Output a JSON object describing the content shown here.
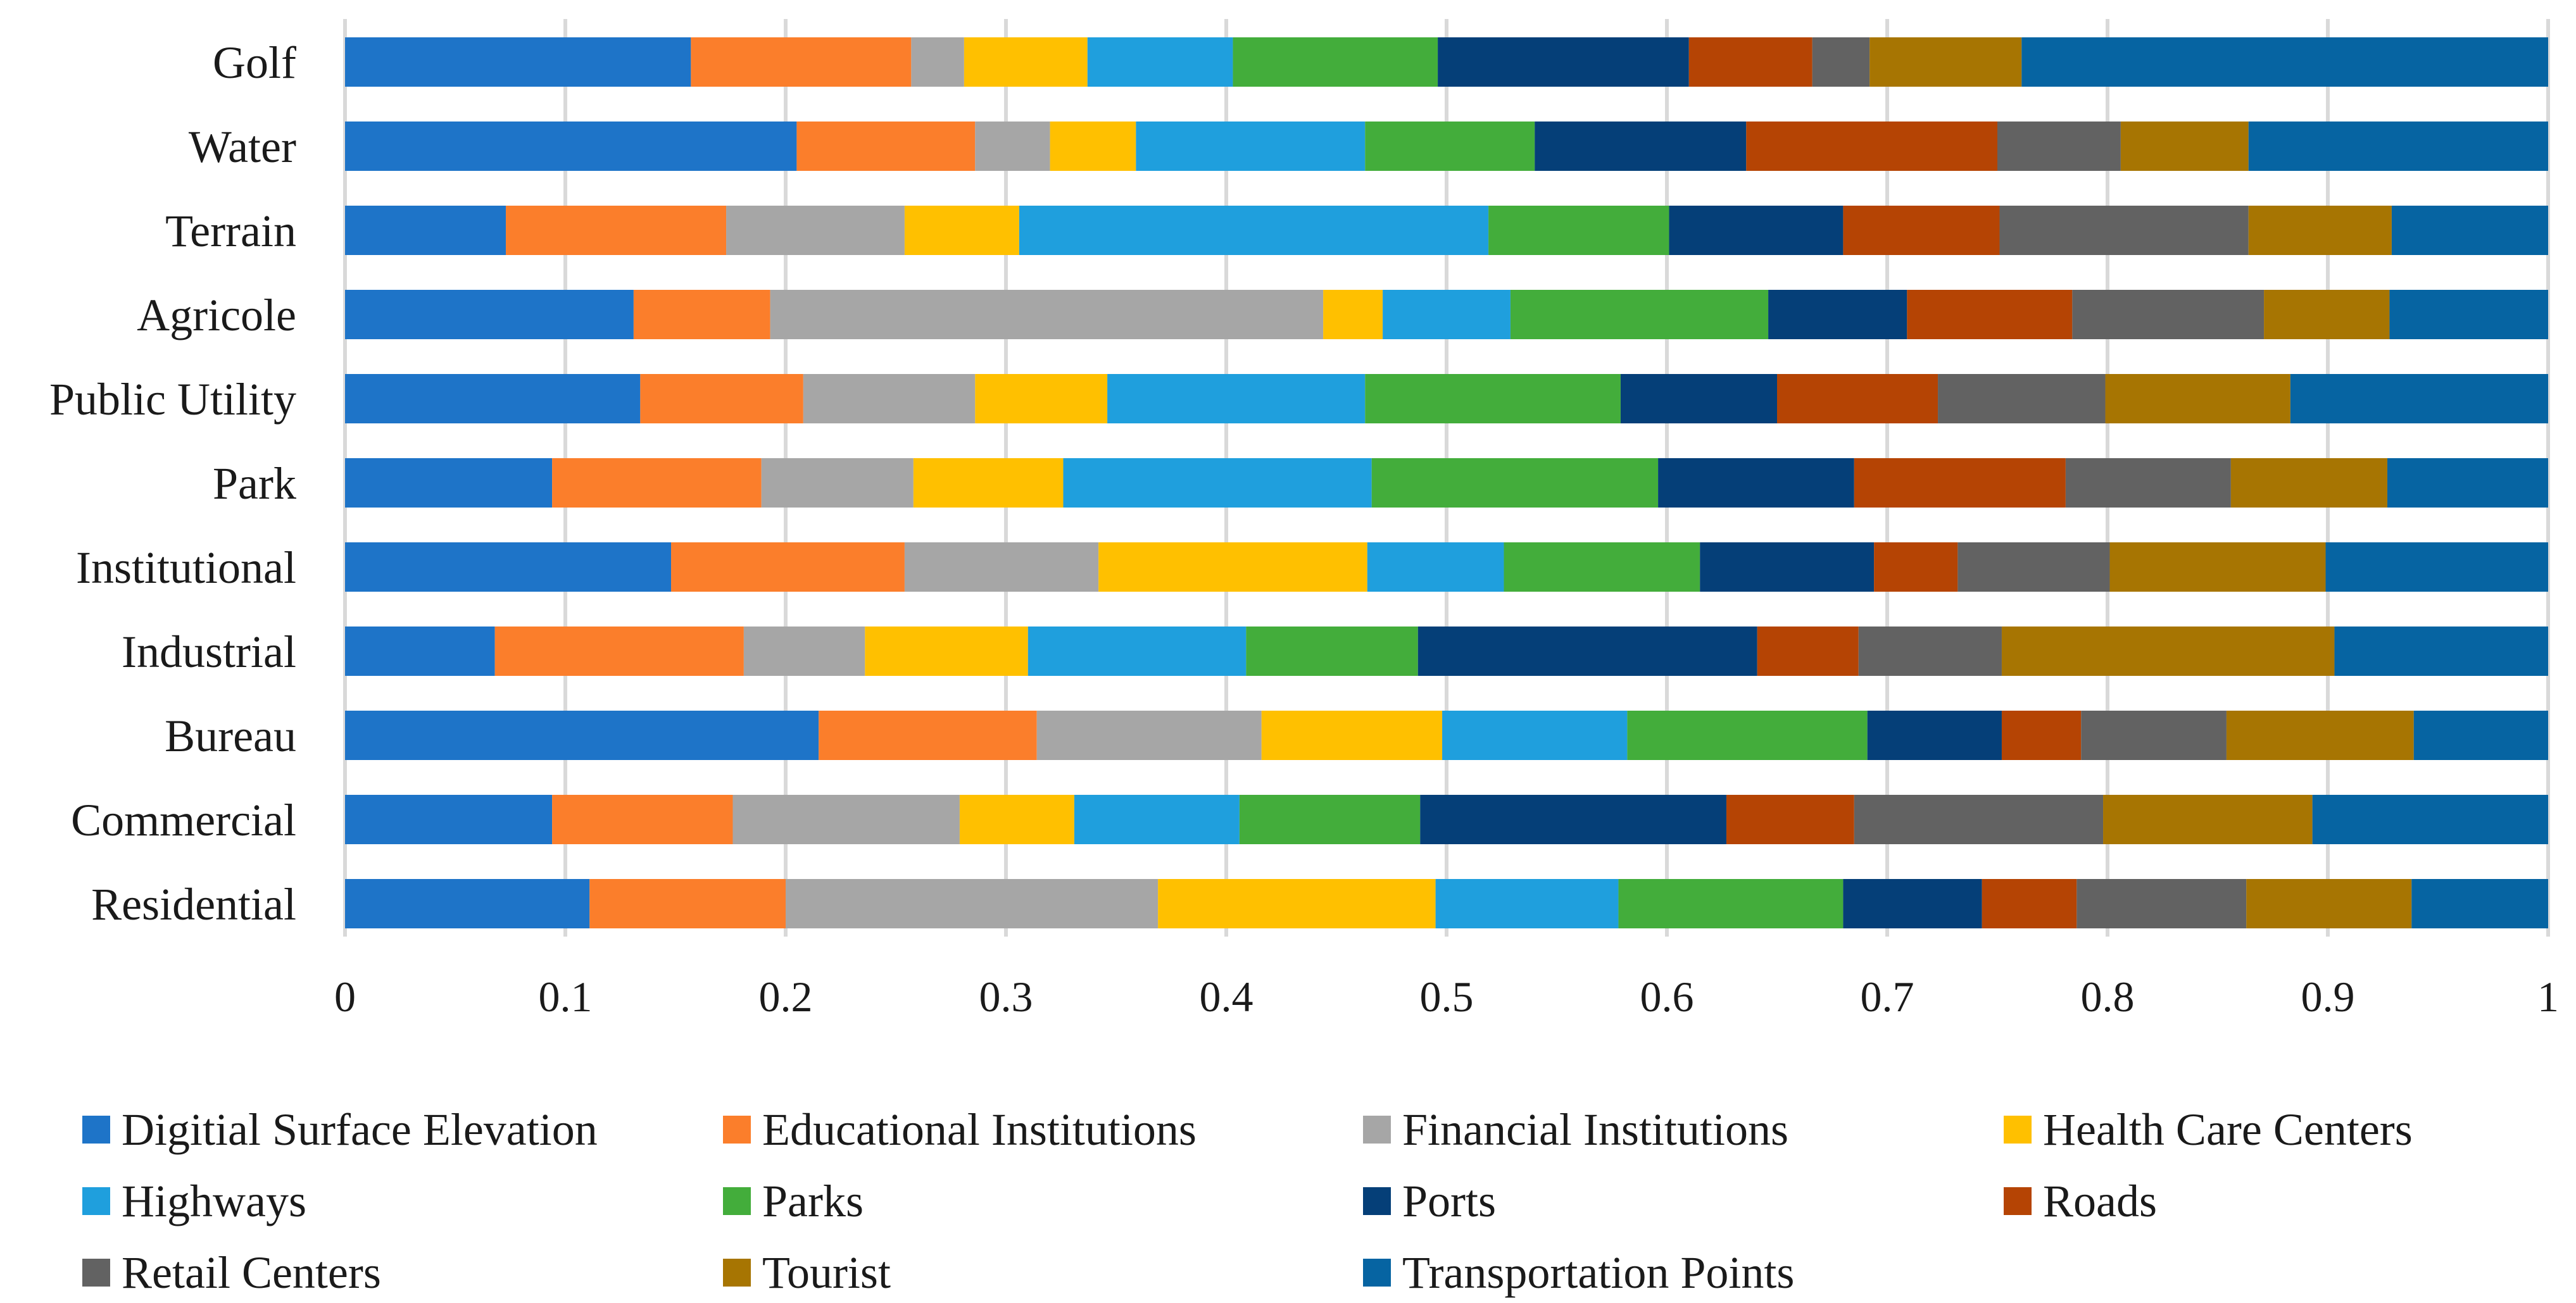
{
  "chart_data": {
    "type": "bar",
    "orientation": "horizontal",
    "stacked": true,
    "title": "",
    "xlabel": "",
    "ylabel": "",
    "xlim": [
      0,
      1
    ],
    "grid": true,
    "legend_position": "bottom",
    "x_ticks": [
      "0",
      "0.1",
      "0.2",
      "0.3",
      "0.4",
      "0.5",
      "0.6",
      "0.7",
      "0.8",
      "0.9",
      "1"
    ],
    "x_tick_values": [
      0,
      0.1,
      0.2,
      0.3,
      0.4,
      0.5,
      0.6,
      0.7,
      0.8,
      0.9,
      1
    ],
    "categories": [
      "Golf",
      "Water",
      "Terrain",
      "Agricole",
      "Public Utility",
      "Park",
      "Institutional",
      "Industrial",
      "Bureau",
      "Commercial",
      "Residential"
    ],
    "series": [
      {
        "name": "Digitial Surface Elevation",
        "color": "#1e74c8",
        "values": [
          0.157,
          0.205,
          0.073,
          0.131,
          0.134,
          0.094,
          0.148,
          0.068,
          0.215,
          0.094,
          0.111
        ]
      },
      {
        "name": "Educational Institutions",
        "color": "#fb7e2b",
        "values": [
          0.1,
          0.081,
          0.1,
          0.062,
          0.074,
          0.095,
          0.106,
          0.113,
          0.099,
          0.082,
          0.089
        ]
      },
      {
        "name": "Financial Institutions",
        "color": "#a6a6a6",
        "values": [
          0.024,
          0.034,
          0.081,
          0.251,
          0.078,
          0.069,
          0.088,
          0.055,
          0.102,
          0.103,
          0.169
        ]
      },
      {
        "name": "Health Care Centers",
        "color": "#ffc000",
        "values": [
          0.056,
          0.039,
          0.052,
          0.027,
          0.06,
          0.068,
          0.122,
          0.074,
          0.082,
          0.052,
          0.126
        ]
      },
      {
        "name": "Highways",
        "color": "#1f9fdd",
        "values": [
          0.066,
          0.104,
          0.213,
          0.058,
          0.117,
          0.14,
          0.062,
          0.099,
          0.084,
          0.075,
          0.083
        ]
      },
      {
        "name": "Parks",
        "color": "#43ad3b",
        "values": [
          0.093,
          0.077,
          0.082,
          0.117,
          0.116,
          0.13,
          0.089,
          0.078,
          0.109,
          0.082,
          0.102
        ]
      },
      {
        "name": "Ports",
        "color": "#053f78",
        "values": [
          0.114,
          0.096,
          0.079,
          0.063,
          0.071,
          0.089,
          0.079,
          0.154,
          0.061,
          0.139,
          0.063
        ]
      },
      {
        "name": "Roads",
        "color": "#b54404",
        "values": [
          0.056,
          0.114,
          0.071,
          0.075,
          0.073,
          0.096,
          0.038,
          0.046,
          0.036,
          0.058,
          0.043
        ]
      },
      {
        "name": "Retail Centers",
        "color": "#626262",
        "values": [
          0.026,
          0.056,
          0.113,
          0.087,
          0.076,
          0.075,
          0.069,
          0.065,
          0.066,
          0.113,
          0.077
        ]
      },
      {
        "name": "Tourist",
        "color": "#a77502",
        "values": [
          0.069,
          0.058,
          0.065,
          0.057,
          0.084,
          0.071,
          0.098,
          0.151,
          0.085,
          0.095,
          0.075
        ]
      },
      {
        "name": "Transportation Points",
        "color": "#0664a2",
        "values": [
          0.239,
          0.136,
          0.071,
          0.072,
          0.117,
          0.073,
          0.101,
          0.097,
          0.061,
          0.107,
          0.062
        ]
      }
    ]
  }
}
